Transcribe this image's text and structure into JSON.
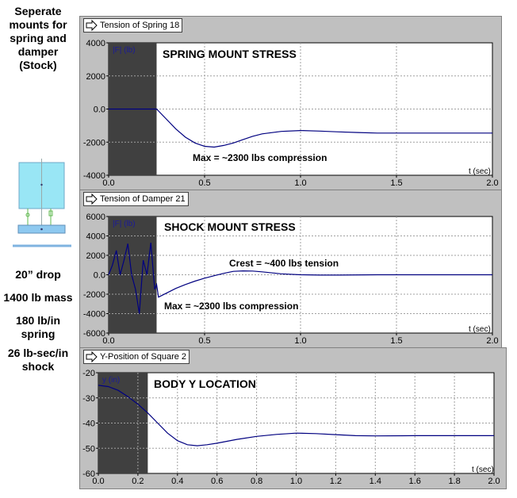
{
  "sidebar": {
    "title": [
      "Seperate",
      "mounts for",
      "spring and",
      "damper",
      "(Stock)"
    ],
    "drop": "20” drop",
    "mass": "1400 lb mass",
    "spring": [
      "180 lb/in",
      "spring"
    ],
    "shock": [
      "26 lb-sec/in",
      "shock"
    ]
  },
  "colors": {
    "line": "#000080",
    "shade": "#404040",
    "panel": "#c0c0c0",
    "diagram_body": "#99e6f5",
    "diagram_plate": "#8ec9f0"
  },
  "chart_data": [
    {
      "type": "line",
      "tab_label": "Tension of Spring 18",
      "ylabel": "|F| (lb)",
      "xlabel": "t (sec)",
      "heading": "SPRING MOUNT STRESS",
      "annotations": [
        "Max = ~2300 lbs compression"
      ],
      "xlim": [
        0,
        2.0
      ],
      "ylim": [
        -4000,
        4000
      ],
      "xticks": [
        "0.0",
        "0.5",
        "1.0",
        "1.5",
        "2.0"
      ],
      "yticks": [
        "4000",
        "2000",
        "0.0",
        "-2000",
        "-4000"
      ],
      "shaded_until": 0.25,
      "grid": true,
      "x": [
        0,
        0.1,
        0.25,
        0.3,
        0.35,
        0.4,
        0.45,
        0.5,
        0.55,
        0.6,
        0.65,
        0.7,
        0.75,
        0.8,
        0.9,
        1.0,
        1.1,
        1.2,
        1.3,
        1.4,
        1.5,
        1.6,
        1.8,
        2.0
      ],
      "y": [
        0,
        0,
        0,
        -600,
        -1200,
        -1700,
        -2050,
        -2250,
        -2300,
        -2200,
        -2050,
        -1850,
        -1650,
        -1500,
        -1350,
        -1300,
        -1330,
        -1380,
        -1420,
        -1450,
        -1450,
        -1450,
        -1450,
        -1450
      ]
    },
    {
      "type": "line",
      "tab_label": "Tension of Damper 21",
      "ylabel": "|F| (lb)",
      "xlabel": "t (sec)",
      "heading": "SHOCK MOUNT STRESS",
      "annotations": [
        "Crest = ~400 lbs tension",
        "Max = ~2300 lbs compression"
      ],
      "xlim": [
        0,
        2.0
      ],
      "ylim": [
        -6000,
        6000
      ],
      "xticks": [
        "0.0",
        "0.5",
        "1.0",
        "1.5",
        "2.0"
      ],
      "yticks": [
        "6000",
        "4000",
        "2000",
        "0.0",
        "-2000",
        "-4000",
        "-6000"
      ],
      "shaded_until": 0.25,
      "grid": true,
      "x": [
        0,
        0.02,
        0.04,
        0.06,
        0.08,
        0.1,
        0.12,
        0.14,
        0.16,
        0.18,
        0.2,
        0.22,
        0.24,
        0.25,
        0.26,
        0.3,
        0.35,
        0.4,
        0.45,
        0.5,
        0.55,
        0.6,
        0.65,
        0.7,
        0.75,
        0.8,
        0.9,
        1.0,
        1.1,
        1.2,
        1.4,
        1.6,
        1.8,
        2.0
      ],
      "y": [
        0,
        1000,
        2500,
        0,
        1500,
        3200,
        0,
        -1500,
        -4000,
        1500,
        0,
        3300,
        -1500,
        -1000,
        -2300,
        -1900,
        -1400,
        -1000,
        -650,
        -350,
        -100,
        150,
        350,
        400,
        380,
        300,
        100,
        0,
        -30,
        -30,
        0,
        0,
        0,
        0
      ]
    },
    {
      "type": "line",
      "tab_label": "Y-Position of Square 2",
      "ylabel": "y (in)",
      "xlabel": "t (sec)",
      "heading": "BODY Y LOCATION",
      "annotations": [],
      "xlim": [
        0,
        2.0
      ],
      "ylim": [
        -60,
        -20
      ],
      "xticks": [
        "0.0",
        "0.2",
        "0.4",
        "0.6",
        "0.8",
        "1.0",
        "1.2",
        "1.4",
        "1.6",
        "1.8",
        "2.0"
      ],
      "yticks": [
        "-20",
        "-30",
        "-40",
        "-50",
        "-60"
      ],
      "shaded_until": 0.25,
      "grid": true,
      "x": [
        0,
        0.05,
        0.1,
        0.15,
        0.2,
        0.25,
        0.3,
        0.35,
        0.4,
        0.45,
        0.5,
        0.55,
        0.6,
        0.7,
        0.8,
        0.9,
        1.0,
        1.1,
        1.2,
        1.3,
        1.4,
        1.6,
        1.8,
        2.0
      ],
      "y": [
        -25,
        -25.5,
        -27,
        -29.5,
        -32.5,
        -36,
        -40,
        -44,
        -47,
        -48.6,
        -49,
        -48.6,
        -48,
        -46.5,
        -45.3,
        -44.5,
        -44,
        -44.2,
        -44.6,
        -45,
        -45.1,
        -45,
        -45,
        -45
      ]
    }
  ]
}
